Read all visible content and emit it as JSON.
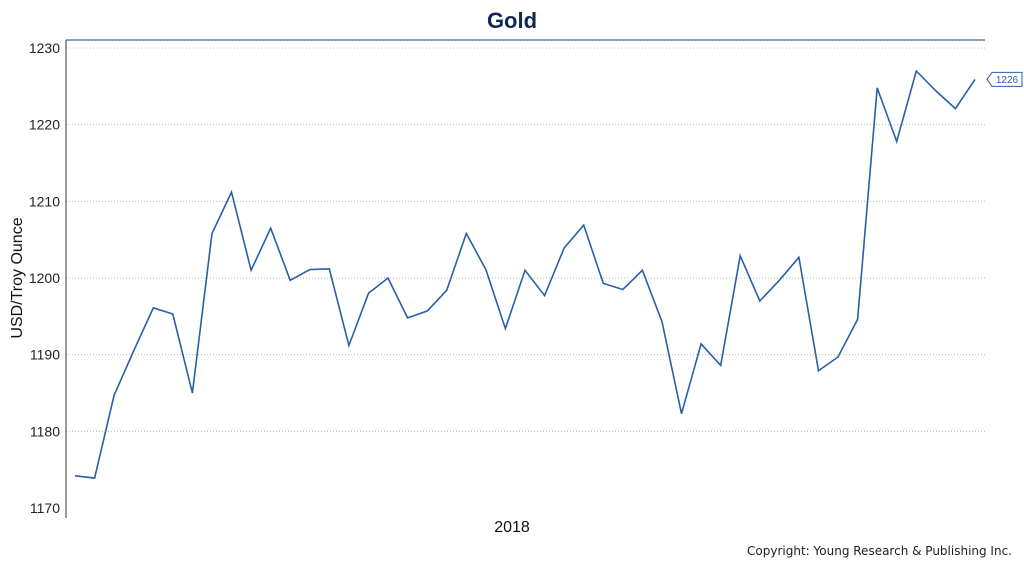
{
  "chart_data": {
    "type": "line",
    "title": "Gold",
    "xlabel": "2018",
    "ylabel": "USD/Troy Ounce",
    "ylim": [
      1170,
      1230
    ],
    "yticks": [
      1170,
      1180,
      1190,
      1200,
      1210,
      1220,
      1230
    ],
    "grid": true,
    "legend": "none",
    "line_color": "#2a5fa8",
    "last_value_label": "1226",
    "series": [
      {
        "values": [
          1174.2,
          1173.9,
          1184.7,
          1190.5,
          1196.1,
          1195.3,
          1185.0,
          1205.8,
          1211.2,
          1201.0,
          1206.5,
          1199.7,
          1201.1,
          1201.2,
          1191.2,
          1198.0,
          1200.0,
          1194.8,
          1195.7,
          1198.4,
          1205.8,
          1201.1,
          1193.4,
          1201.0,
          1197.7,
          1203.9,
          1206.9,
          1199.3,
          1198.5,
          1201.0,
          1194.3,
          1182.3,
          1191.4,
          1188.6,
          1202.9,
          1197.0,
          1199.7,
          1202.7,
          1187.9,
          1189.7,
          1194.6,
          1224.8,
          1217.8,
          1227.0,
          1224.4,
          1222.1,
          1225.9
        ]
      }
    ]
  },
  "footer": {
    "copyright": "Copyright: Young Research & Publishing Inc."
  }
}
